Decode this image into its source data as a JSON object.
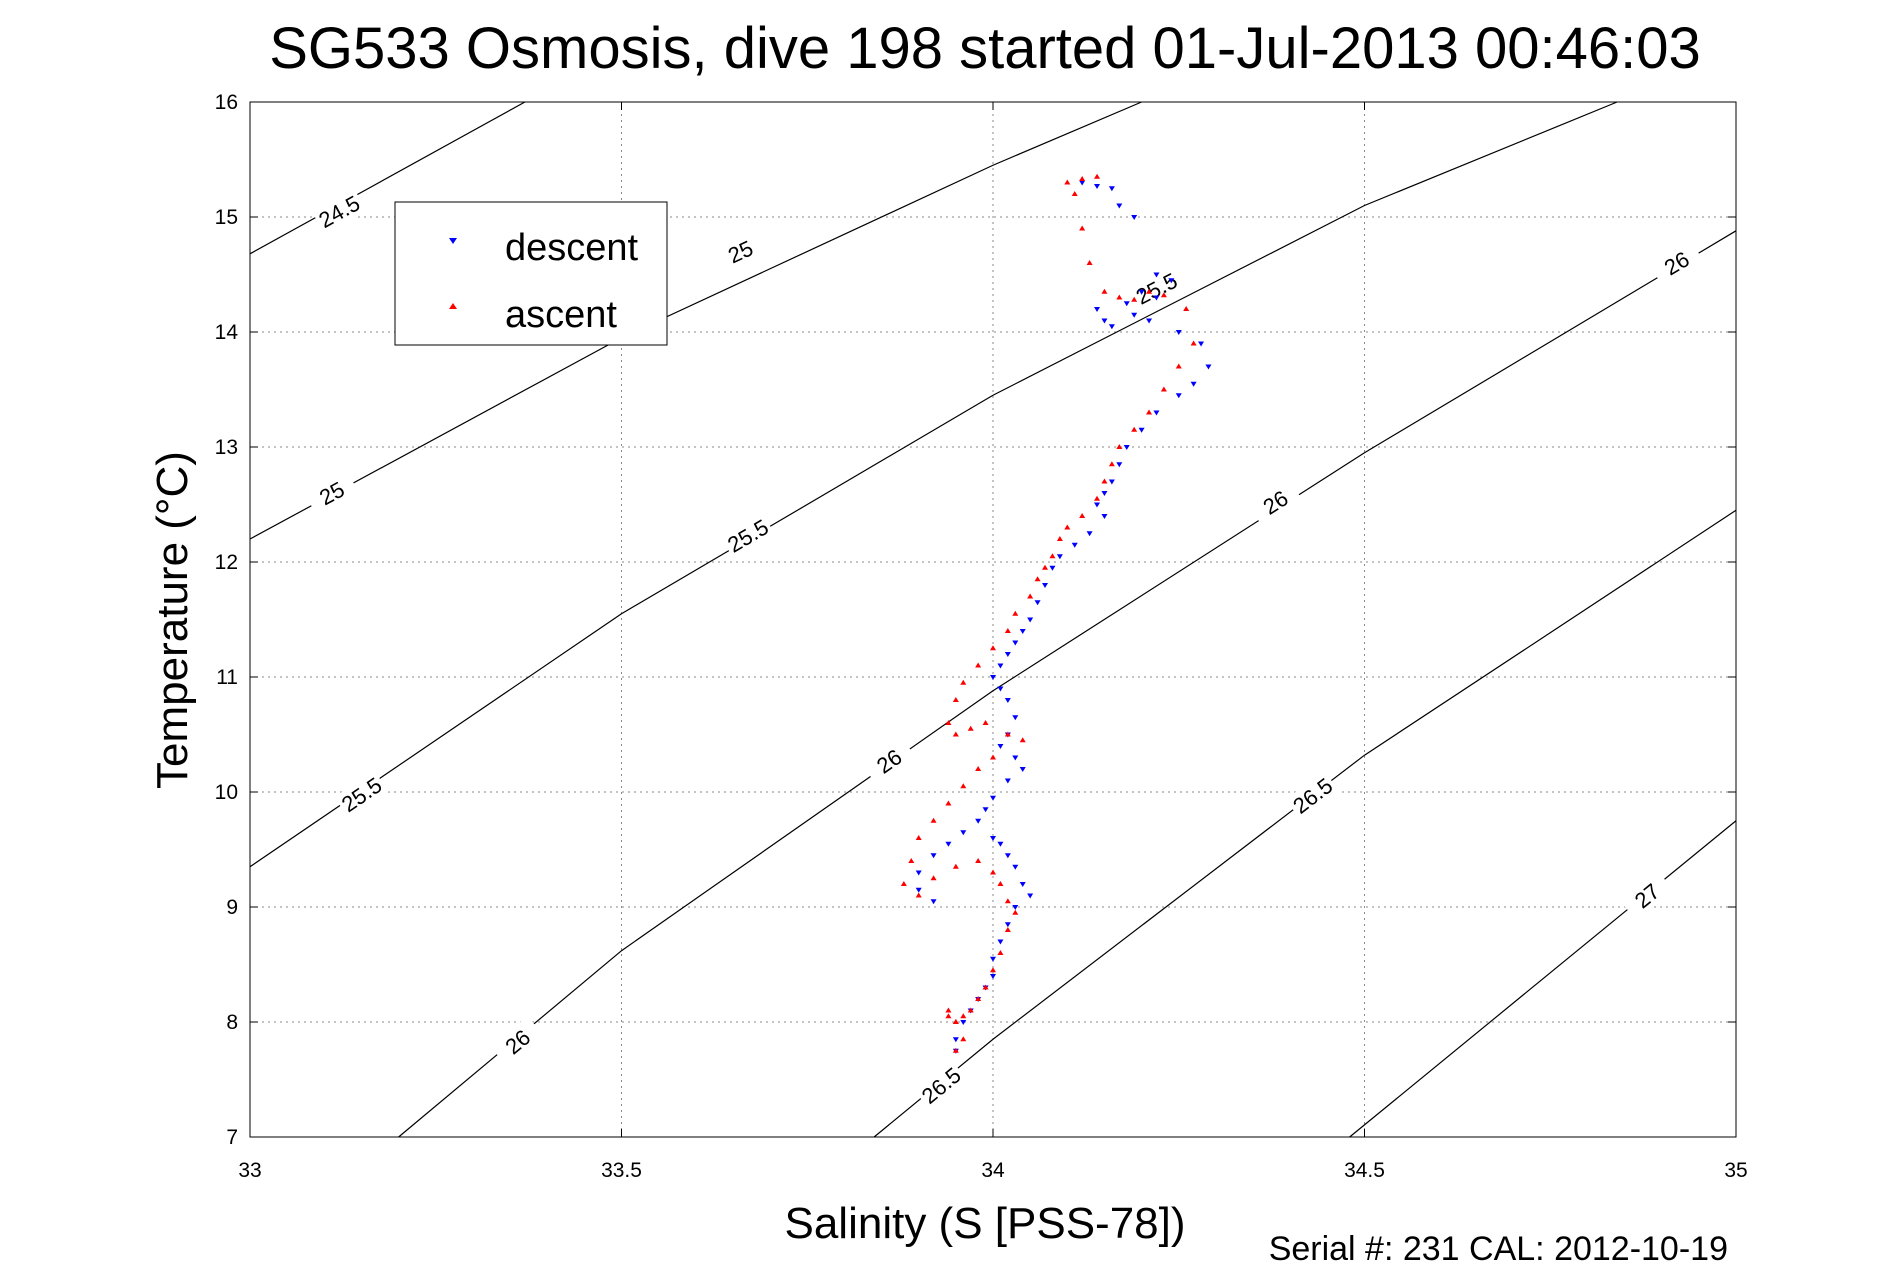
{
  "chart_data": {
    "type": "scatter",
    "title": "SG533 Osmosis, dive 198 started 01-Jul-2013 00:46:03",
    "xlabel": "Salinity (S [PSS-78])",
    "ylabel": "Temperature (°C)",
    "xlim": [
      33,
      35
    ],
    "ylim": [
      7,
      16
    ],
    "x_ticks": [
      "33",
      "33.5",
      "34",
      "34.5",
      "35"
    ],
    "y_ticks": [
      "7",
      "8",
      "9",
      "10",
      "11",
      "12",
      "13",
      "14",
      "15",
      "16"
    ],
    "grid": true,
    "legend_position": "top-left",
    "footer": "Serial #: 231  CAL: 2012-10-19",
    "density_contours": [
      {
        "level": "24.5",
        "points": [
          [
            33.0,
            14.68
          ],
          [
            33.37,
            16.0
          ]
        ],
        "labels": [
          {
            "text": "24.5",
            "x": 33.12,
            "y": 15.05
          }
        ]
      },
      {
        "level": "25",
        "points": [
          [
            33.0,
            12.2
          ],
          [
            33.5,
            13.95
          ],
          [
            34.0,
            15.45
          ],
          [
            34.2,
            16.0
          ]
        ],
        "labels": [
          {
            "text": "25",
            "x": 33.11,
            "y": 12.6
          },
          {
            "text": "25",
            "x": 33.66,
            "y": 14.7
          }
        ]
      },
      {
        "level": "25.5",
        "points": [
          [
            33.0,
            9.35
          ],
          [
            33.5,
            11.55
          ],
          [
            34.0,
            13.45
          ],
          [
            34.5,
            15.1
          ],
          [
            34.84,
            16.0
          ]
        ],
        "labels": [
          {
            "text": "25.5",
            "x": 33.15,
            "y": 9.98
          },
          {
            "text": "25.5",
            "x": 33.67,
            "y": 12.23
          },
          {
            "text": "25.5",
            "x": 34.22,
            "y": 14.38
          }
        ]
      },
      {
        "level": "26",
        "points": [
          [
            33.2,
            7.0
          ],
          [
            33.5,
            8.62
          ],
          [
            34.0,
            10.88
          ],
          [
            34.5,
            12.95
          ],
          [
            35.0,
            14.88
          ]
        ],
        "labels": [
          {
            "text": "26",
            "x": 33.36,
            "y": 7.83
          },
          {
            "text": "26",
            "x": 33.86,
            "y": 10.27
          },
          {
            "text": "26",
            "x": 34.38,
            "y": 12.52
          },
          {
            "text": "26",
            "x": 34.92,
            "y": 14.6
          }
        ]
      },
      {
        "level": "26.5",
        "points": [
          [
            33.84,
            7.0
          ],
          [
            34.0,
            7.85
          ],
          [
            34.5,
            10.32
          ],
          [
            35.0,
            12.45
          ]
        ],
        "labels": [
          {
            "text": "26.5",
            "x": 33.93,
            "y": 7.45
          },
          {
            "text": "26.5",
            "x": 34.43,
            "y": 9.97
          }
        ]
      },
      {
        "level": "27",
        "points": [
          [
            34.48,
            7.0
          ],
          [
            35.0,
            9.75
          ]
        ],
        "labels": [
          {
            "text": "27",
            "x": 34.88,
            "y": 9.1
          }
        ]
      }
    ],
    "series": [
      {
        "name": "descent",
        "color": "#0000ff",
        "marker": "triangle-down",
        "x": [
          34.12,
          34.14,
          34.16,
          34.17,
          34.19,
          34.14,
          34.18,
          34.2,
          34.22,
          34.24,
          34.22,
          34.19,
          34.16,
          34.15,
          34.21,
          34.25,
          34.28,
          34.29,
          34.27,
          34.25,
          34.22,
          34.2,
          34.18,
          34.17,
          34.16,
          34.15,
          34.14,
          34.15,
          34.13,
          34.11,
          34.09,
          34.08,
          34.07,
          34.06,
          34.05,
          34.04,
          34.03,
          34.02,
          34.01,
          34.0,
          34.01,
          34.02,
          34.03,
          34.02,
          34.01,
          34.03,
          34.04,
          34.02,
          34.0,
          33.99,
          33.98,
          33.96,
          33.94,
          33.92,
          33.9,
          33.9,
          33.92,
          34.0,
          34.01,
          34.02,
          34.03,
          34.04,
          34.05,
          34.03,
          34.02,
          34.01,
          34.0,
          34.0,
          33.99,
          33.98,
          33.97,
          33.96,
          33.95,
          33.95
        ],
        "y": [
          15.3,
          15.27,
          15.25,
          15.1,
          15.0,
          14.2,
          14.25,
          14.35,
          14.5,
          14.45,
          14.3,
          14.15,
          14.05,
          14.1,
          14.1,
          14.0,
          13.9,
          13.7,
          13.55,
          13.45,
          13.3,
          13.15,
          13.0,
          12.85,
          12.7,
          12.6,
          12.5,
          12.4,
          12.25,
          12.15,
          12.05,
          11.95,
          11.8,
          11.65,
          11.5,
          11.4,
          11.3,
          11.2,
          11.1,
          11.0,
          10.9,
          10.8,
          10.65,
          10.5,
          10.4,
          10.3,
          10.2,
          10.1,
          9.95,
          9.85,
          9.75,
          9.65,
          9.55,
          9.45,
          9.3,
          9.15,
          9.05,
          9.6,
          9.55,
          9.45,
          9.35,
          9.2,
          9.1,
          9.0,
          8.85,
          8.7,
          8.55,
          8.4,
          8.3,
          8.2,
          8.1,
          8.0,
          7.85,
          7.75
        ]
      },
      {
        "name": "ascent",
        "color": "#ff0000",
        "marker": "triangle-up",
        "x": [
          34.1,
          34.12,
          34.14,
          34.11,
          34.12,
          34.13,
          34.15,
          34.17,
          34.19,
          34.21,
          34.23,
          34.26,
          34.27,
          34.25,
          34.23,
          34.21,
          34.19,
          34.17,
          34.16,
          34.15,
          34.14,
          34.12,
          34.1,
          34.09,
          34.08,
          34.07,
          34.06,
          34.05,
          34.03,
          34.02,
          34.0,
          33.98,
          33.96,
          33.95,
          33.94,
          33.95,
          33.97,
          33.99,
          34.02,
          34.04,
          34.0,
          33.98,
          33.96,
          33.94,
          33.92,
          33.9,
          33.89,
          33.88,
          33.9,
          33.92,
          33.95,
          33.98,
          34.0,
          34.01,
          34.02,
          34.03,
          34.02,
          34.01,
          34.0,
          33.99,
          33.98,
          33.97,
          33.96,
          33.95,
          33.94,
          33.94,
          33.95,
          33.96,
          33.95
        ],
        "y": [
          15.3,
          15.33,
          15.35,
          15.2,
          14.9,
          14.6,
          14.35,
          14.3,
          14.28,
          14.35,
          14.32,
          14.2,
          13.9,
          13.7,
          13.5,
          13.3,
          13.15,
          13.0,
          12.85,
          12.7,
          12.55,
          12.4,
          12.3,
          12.2,
          12.05,
          11.95,
          11.85,
          11.7,
          11.55,
          11.4,
          11.25,
          11.1,
          10.95,
          10.8,
          10.6,
          10.5,
          10.55,
          10.6,
          10.5,
          10.45,
          10.3,
          10.2,
          10.05,
          9.9,
          9.75,
          9.6,
          9.4,
          9.2,
          9.1,
          9.25,
          9.35,
          9.4,
          9.3,
          9.2,
          9.05,
          8.95,
          8.8,
          8.6,
          8.45,
          8.3,
          8.2,
          8.1,
          8.05,
          8.0,
          8.05,
          8.1,
          8.0,
          7.85,
          7.75
        ]
      }
    ]
  }
}
